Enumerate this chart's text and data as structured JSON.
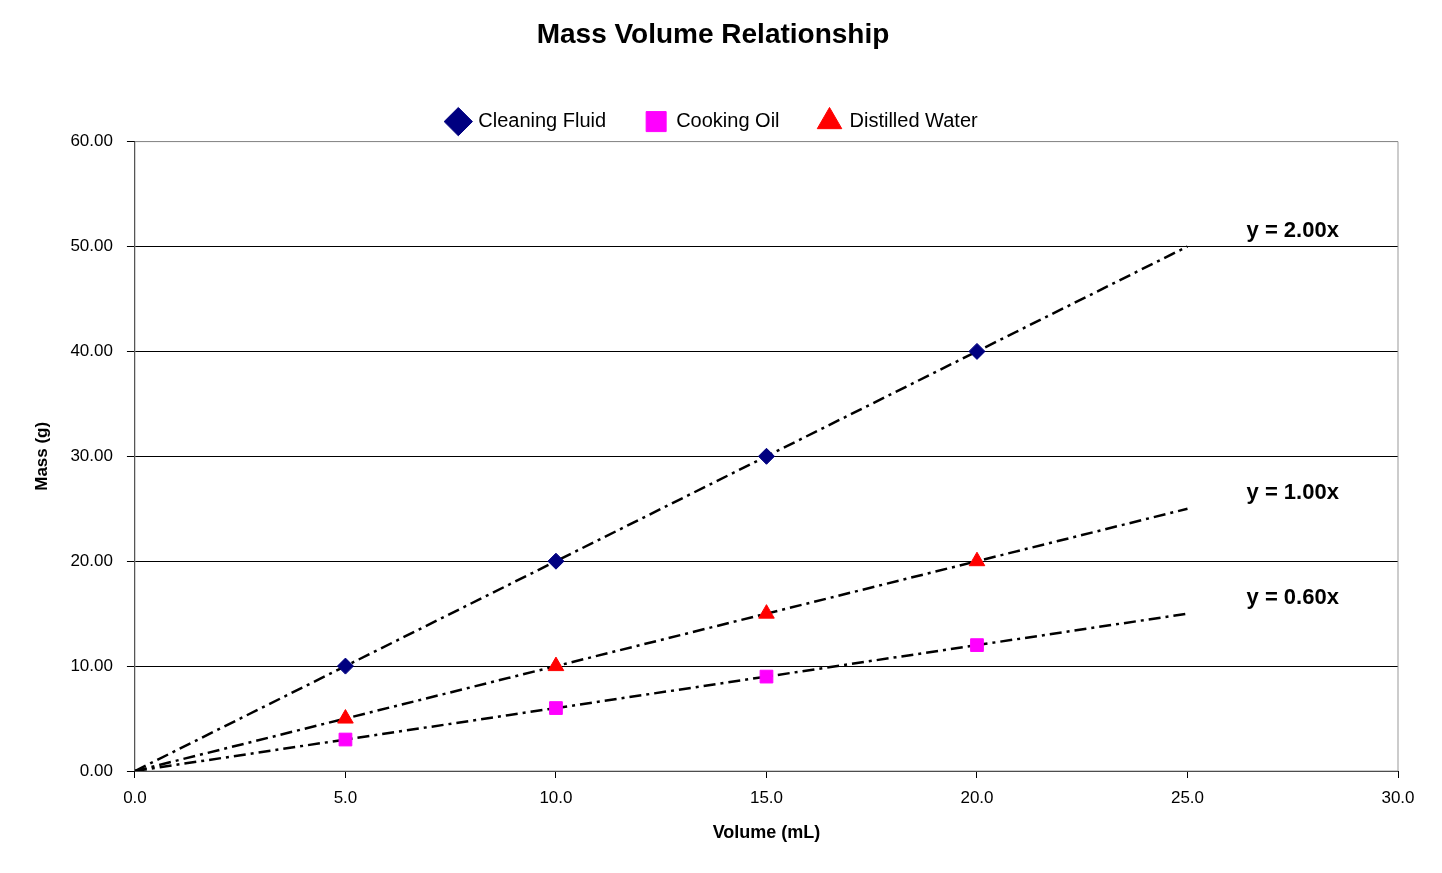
{
  "chart_data": {
    "type": "scatter",
    "title": "Mass Volume Relationship",
    "xlabel": "Volume (mL)",
    "ylabel": "Mass (g)",
    "xlim": [
      0,
      30
    ],
    "xticks": [
      {
        "value": 0,
        "label": "0.0"
      },
      {
        "value": 5,
        "label": "5.0"
      },
      {
        "value": 10,
        "label": "10.0"
      },
      {
        "value": 15,
        "label": "15.0"
      },
      {
        "value": 20,
        "label": "20.0"
      },
      {
        "value": 25,
        "label": "25.0"
      },
      {
        "value": 30,
        "label": "30.0"
      }
    ],
    "ylim": [
      0,
      60
    ],
    "yticks": [
      {
        "value": 0,
        "label": "0.00"
      },
      {
        "value": 10,
        "label": "10.00"
      },
      {
        "value": 20,
        "label": "20.00"
      },
      {
        "value": 30,
        "label": "30.00"
      },
      {
        "value": 40,
        "label": "40.00"
      },
      {
        "value": 50,
        "label": "50.00"
      },
      {
        "value": 60,
        "label": "60.00"
      }
    ],
    "grid": "y",
    "legend": "top",
    "series": [
      {
        "name": "Cleaning Fluid",
        "color": "#000080",
        "marker": "diamond",
        "x": [
          5,
          10,
          15,
          20
        ],
        "values": [
          10,
          20,
          30,
          40
        ]
      },
      {
        "name": "Cooking Oil",
        "color": "#ff00ff",
        "marker": "square",
        "x": [
          5,
          10,
          15,
          20
        ],
        "values": [
          3,
          6,
          9,
          12
        ]
      },
      {
        "name": "Distilled Water",
        "color": "#ff0000",
        "marker": "triangle",
        "x": [
          5,
          10,
          15,
          20
        ],
        "values": [
          5,
          10,
          15,
          20
        ]
      },
      {
        "type": "line",
        "color": "#000000",
        "marker": "none",
        "line_style": "dashed",
        "x": [
          0,
          25
        ],
        "values": [
          0,
          50
        ]
      },
      {
        "type": "line",
        "color": "#000000",
        "marker": "none",
        "line_style": "dashed",
        "x": [
          0,
          25
        ],
        "values": [
          0,
          25
        ]
      },
      {
        "type": "line",
        "color": "#000000",
        "marker": "none",
        "line_style": "dashed",
        "x": [
          0,
          25
        ],
        "values": [
          0,
          15
        ]
      }
    ],
    "annotations": [
      "y = 2.00x",
      "y = 1.00x",
      "y = 0.60x"
    ]
  }
}
